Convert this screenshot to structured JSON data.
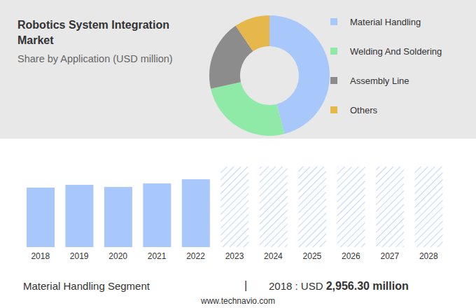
{
  "chart_data": [
    {
      "type": "pie",
      "title": "Robotics System Integration Market",
      "subtitle": "Share by Application (USD million)",
      "categories": [
        "Material Handling",
        "Welding And Soldering",
        "Assembly Line",
        "Others"
      ],
      "values": [
        46,
        25.5,
        19,
        9.5
      ],
      "colors": [
        "#a8c7fa",
        "#8eeaa6",
        "#8c8c8c",
        "#e6b84c"
      ],
      "legend": "right"
    },
    {
      "type": "bar",
      "categories": [
        "2018",
        "2019",
        "2020",
        "2021",
        "2022",
        "2023",
        "2024",
        "2025",
        "2026",
        "2027",
        "2028"
      ],
      "values": [
        6430,
        6730,
        6500,
        6880,
        7330,
        null,
        null,
        null,
        null,
        null,
        null
      ],
      "color": "#a8c7fa",
      "ylim": [
        0,
        8700
      ],
      "yticks": [
        0,
        1450,
        2900,
        4350,
        5800,
        7250,
        8700
      ],
      "grid": true,
      "tick_labels": "x"
    }
  ],
  "footer": {
    "segment": "Material Handling Segment",
    "separator": "|",
    "prefix": "2018 : USD",
    "value": "2,956.30",
    "unit": "million"
  },
  "source": "www.technavio.com"
}
